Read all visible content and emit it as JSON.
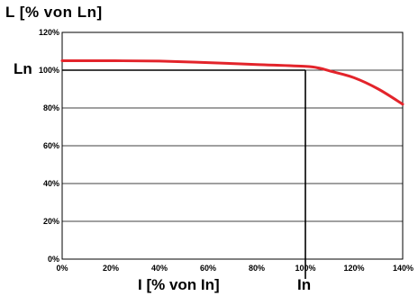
{
  "chart_data": {
    "type": "line",
    "title": "",
    "ylabel": "L [% von Ln]",
    "xlabel": "I [% von In]",
    "xlim": [
      0,
      140
    ],
    "ylim": [
      0,
      120
    ],
    "x_ticks": [
      "0%",
      "20%",
      "40%",
      "60%",
      "80%",
      "100%",
      "120%",
      "140%"
    ],
    "y_ticks": [
      "0%",
      "20%",
      "40%",
      "60%",
      "80%",
      "100%",
      "120%"
    ],
    "grid": "horizontal",
    "series": [
      {
        "color": "#e3242b",
        "x": [
          0,
          20,
          40,
          60,
          80,
          100,
          106,
          110,
          120,
          130,
          140
        ],
        "y": [
          105,
          105,
          104.8,
          104,
          103,
          102,
          101,
          99.6,
          96,
          90,
          82
        ]
      }
    ],
    "reference": {
      "x": 100,
      "y": 100,
      "x_label": "In",
      "y_label": "Ln"
    }
  }
}
